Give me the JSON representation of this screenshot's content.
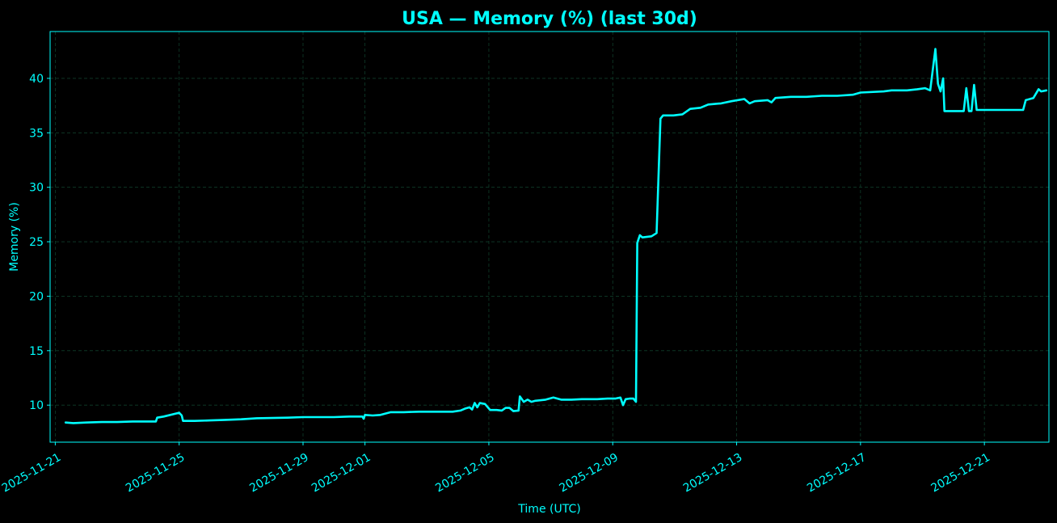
{
  "colors": {
    "background": "#000000",
    "accent": "#00ffff",
    "grid": "#0f3d2a"
  },
  "chart_data": {
    "type": "line",
    "title": "USA — Memory (%) (last 30d)",
    "xlabel": "Time (UTC)",
    "ylabel": "Memory (%)",
    "xlim": [
      "2025-11-20T20:00",
      "2025-12-23T02:00"
    ],
    "ylim": [
      6.6,
      44.3
    ],
    "grid": true,
    "legend": "none",
    "x_ticks": [
      "2025-11-21",
      "2025-11-25",
      "2025-11-29",
      "2025-12-01",
      "2025-12-05",
      "2025-12-09",
      "2025-12-13",
      "2025-12-17",
      "2025-12-21"
    ],
    "y_ticks": [
      10,
      15,
      20,
      25,
      30,
      35,
      40
    ],
    "series": [
      {
        "color": "#00ffff",
        "points": [
          [
            "2025-11-21T08:00",
            8.4
          ],
          [
            "2025-11-21T14:00",
            8.35
          ],
          [
            "2025-11-22T00:00",
            8.4
          ],
          [
            "2025-11-22T12:00",
            8.45
          ],
          [
            "2025-11-23T00:00",
            8.45
          ],
          [
            "2025-11-23T12:00",
            8.5
          ],
          [
            "2025-11-24T00:00",
            8.5
          ],
          [
            "2025-11-24T06:00",
            8.5
          ],
          [
            "2025-11-24T07:00",
            8.85
          ],
          [
            "2025-11-24T12:00",
            8.95
          ],
          [
            "2025-11-25T00:00",
            9.3
          ],
          [
            "2025-11-25T02:00",
            9.05
          ],
          [
            "2025-11-25T03:00",
            8.55
          ],
          [
            "2025-11-25T12:00",
            8.55
          ],
          [
            "2025-11-26T00:00",
            8.6
          ],
          [
            "2025-11-26T12:00",
            8.65
          ],
          [
            "2025-11-27T00:00",
            8.7
          ],
          [
            "2025-11-27T12:00",
            8.8
          ],
          [
            "2025-11-28T00:00",
            8.82
          ],
          [
            "2025-11-28T12:00",
            8.85
          ],
          [
            "2025-11-29T00:00",
            8.9
          ],
          [
            "2025-11-29T12:00",
            8.9
          ],
          [
            "2025-11-30T00:00",
            8.9
          ],
          [
            "2025-11-30T12:00",
            8.95
          ],
          [
            "2025-11-30T22:00",
            8.95
          ],
          [
            "2025-11-30T23:00",
            8.75
          ],
          [
            "2025-12-01T00:00",
            9.1
          ],
          [
            "2025-12-01T06:00",
            9.05
          ],
          [
            "2025-12-01T12:00",
            9.1
          ],
          [
            "2025-12-01T20:00",
            9.35
          ],
          [
            "2025-12-02T06:00",
            9.35
          ],
          [
            "2025-12-02T18:00",
            9.4
          ],
          [
            "2025-12-03T06:00",
            9.4
          ],
          [
            "2025-12-03T20:00",
            9.4
          ],
          [
            "2025-12-04T02:00",
            9.5
          ],
          [
            "2025-12-04T06:00",
            9.7
          ],
          [
            "2025-12-04T09:00",
            9.8
          ],
          [
            "2025-12-04T11:00",
            9.6
          ],
          [
            "2025-12-04T13:00",
            10.2
          ],
          [
            "2025-12-04T15:00",
            9.8
          ],
          [
            "2025-12-04T17:00",
            10.2
          ],
          [
            "2025-12-04T21:00",
            10.1
          ],
          [
            "2025-12-05T01:00",
            9.55
          ],
          [
            "2025-12-05T06:00",
            9.55
          ],
          [
            "2025-12-05T10:00",
            9.5
          ],
          [
            "2025-12-05T13:00",
            9.75
          ],
          [
            "2025-12-05T16:00",
            9.75
          ],
          [
            "2025-12-05T19:00",
            9.45
          ],
          [
            "2025-12-05T23:00",
            9.5
          ],
          [
            "2025-12-06T00:00",
            10.8
          ],
          [
            "2025-12-06T03:00",
            10.3
          ],
          [
            "2025-12-06T06:00",
            10.5
          ],
          [
            "2025-12-06T09:00",
            10.3
          ],
          [
            "2025-12-06T12:00",
            10.4
          ],
          [
            "2025-12-06T20:00",
            10.5
          ],
          [
            "2025-12-07T02:00",
            10.7
          ],
          [
            "2025-12-07T08:00",
            10.5
          ],
          [
            "2025-12-07T16:00",
            10.5
          ],
          [
            "2025-12-08T00:00",
            10.55
          ],
          [
            "2025-12-08T12:00",
            10.55
          ],
          [
            "2025-12-08T20:00",
            10.6
          ],
          [
            "2025-12-09T02:00",
            10.6
          ],
          [
            "2025-12-09T06:00",
            10.7
          ],
          [
            "2025-12-09T08:00",
            10.0
          ],
          [
            "2025-12-09T10:00",
            10.55
          ],
          [
            "2025-12-09T13:00",
            10.6
          ],
          [
            "2025-12-09T16:00",
            10.6
          ],
          [
            "2025-12-09T18:00",
            10.3
          ],
          [
            "2025-12-09T19:00",
            24.9
          ],
          [
            "2025-12-09T21:00",
            25.6
          ],
          [
            "2025-12-09T23:00",
            25.4
          ],
          [
            "2025-12-10T06:00",
            25.5
          ],
          [
            "2025-12-10T10:00",
            25.8
          ],
          [
            "2025-12-10T13:00",
            36.3
          ],
          [
            "2025-12-10T15:00",
            36.6
          ],
          [
            "2025-12-10T23:00",
            36.6
          ],
          [
            "2025-12-11T06:00",
            36.7
          ],
          [
            "2025-12-11T12:00",
            37.2
          ],
          [
            "2025-12-11T20:00",
            37.3
          ],
          [
            "2025-12-12T02:00",
            37.6
          ],
          [
            "2025-12-12T12:00",
            37.7
          ],
          [
            "2025-12-12T20:00",
            37.9
          ],
          [
            "2025-12-13T06:00",
            38.1
          ],
          [
            "2025-12-13T10:00",
            37.7
          ],
          [
            "2025-12-13T14:00",
            37.9
          ],
          [
            "2025-12-14T00:00",
            38.0
          ],
          [
            "2025-12-14T03:00",
            37.8
          ],
          [
            "2025-12-14T06:00",
            38.2
          ],
          [
            "2025-12-14T18:00",
            38.3
          ],
          [
            "2025-12-15T06:00",
            38.3
          ],
          [
            "2025-12-15T18:00",
            38.4
          ],
          [
            "2025-12-16T06:00",
            38.4
          ],
          [
            "2025-12-16T18:00",
            38.5
          ],
          [
            "2025-12-17T00:00",
            38.7
          ],
          [
            "2025-12-17T18:00",
            38.8
          ],
          [
            "2025-12-18T00:00",
            38.9
          ],
          [
            "2025-12-18T12:00",
            38.9
          ],
          [
            "2025-12-18T20:00",
            39.0
          ],
          [
            "2025-12-19T02:00",
            39.1
          ],
          [
            "2025-12-19T06:00",
            38.9
          ],
          [
            "2025-12-19T10:00",
            42.7
          ],
          [
            "2025-12-19T12:00",
            39.5
          ],
          [
            "2025-12-19T14:00",
            38.8
          ],
          [
            "2025-12-19T16:00",
            40.0
          ],
          [
            "2025-12-19T17:00",
            37.0
          ],
          [
            "2025-12-20T00:00",
            37.0
          ],
          [
            "2025-12-20T08:00",
            37.0
          ],
          [
            "2025-12-20T10:00",
            39.1
          ],
          [
            "2025-12-20T12:00",
            37.0
          ],
          [
            "2025-12-20T14:00",
            37.0
          ],
          [
            "2025-12-20T16:00",
            39.4
          ],
          [
            "2025-12-20T18:00",
            37.1
          ],
          [
            "2025-12-21T00:00",
            37.1
          ],
          [
            "2025-12-21T12:00",
            37.1
          ],
          [
            "2025-12-22T06:00",
            37.1
          ],
          [
            "2025-12-22T08:00",
            38.0
          ],
          [
            "2025-12-22T14:00",
            38.2
          ],
          [
            "2025-12-22T18:00",
            39.0
          ],
          [
            "2025-12-22T20:00",
            38.8
          ],
          [
            "2025-12-23T00:00",
            38.9
          ]
        ]
      }
    ]
  }
}
